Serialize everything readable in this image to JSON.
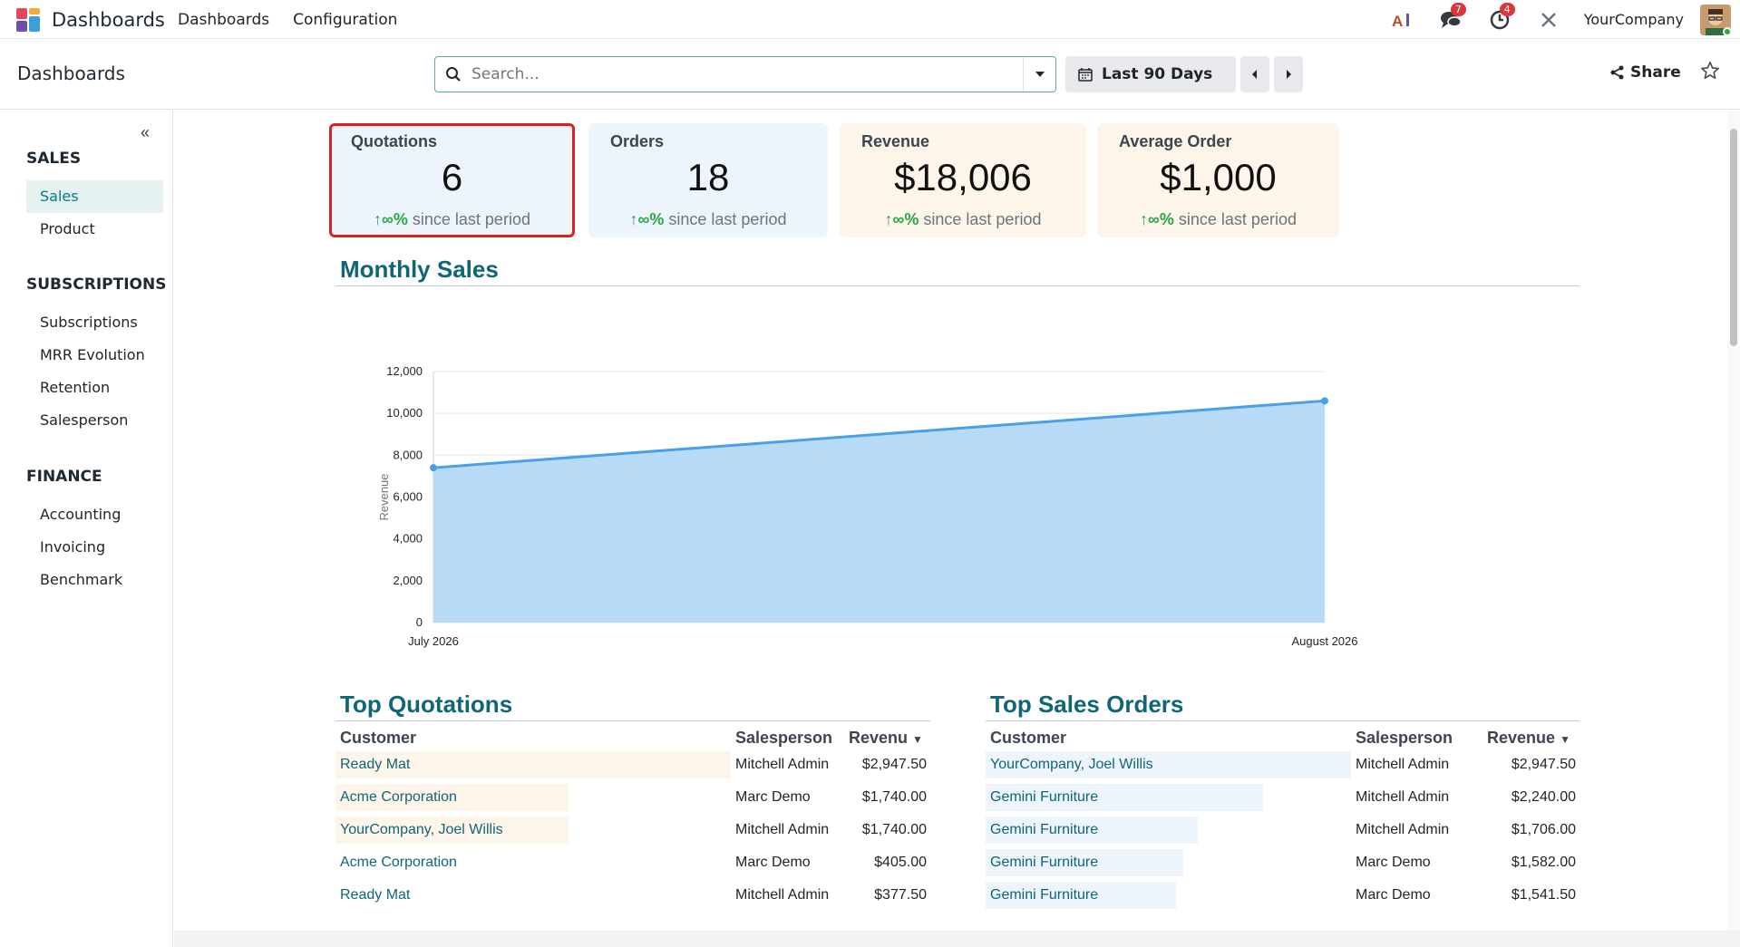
{
  "navbar": {
    "app_name": "Dashboards",
    "menu": [
      "Dashboards",
      "Configuration"
    ],
    "messages_count": "7",
    "activities_count": "4",
    "company": "YourCompany"
  },
  "control": {
    "breadcrumb": "Dashboards",
    "search_placeholder": "Search...",
    "date_filter": "Last 90 Days",
    "share_label": "Share"
  },
  "sidebar": {
    "collapse_glyph": "«",
    "sections": [
      {
        "title": "SALES",
        "items": [
          "Sales",
          "Product"
        ]
      },
      {
        "title": "SUBSCRIPTIONS",
        "items": [
          "Subscriptions",
          "MRR Evolution",
          "Retention",
          "Salesperson"
        ]
      },
      {
        "title": "FINANCE",
        "items": [
          "Accounting",
          "Invoicing",
          "Benchmark"
        ]
      }
    ],
    "active_item": "Sales"
  },
  "kpis": [
    {
      "label": "Quotations",
      "value": "6",
      "trend": "∞%",
      "trend_suffix": "since last period",
      "color": "#edf4fc"
    },
    {
      "label": "Orders",
      "value": "18",
      "trend": "∞%",
      "trend_suffix": "since last period",
      "color": "#edf4fc"
    },
    {
      "label": "Revenue",
      "value": "$18,006",
      "trend": "∞%",
      "trend_suffix": "since last period",
      "color": "#fdf4ea"
    },
    {
      "label": "Average Order",
      "value": "$1,000",
      "trend": "∞%",
      "trend_suffix": "since last period",
      "color": "#fdf4ea"
    }
  ],
  "monthly_sales": {
    "title": "Monthly Sales"
  },
  "chart_data": {
    "type": "area",
    "x": [
      "July 2026",
      "August 2026"
    ],
    "series": [
      {
        "values": [
          7400,
          10600
        ]
      }
    ],
    "ylabel": "Revenue",
    "xlabel": "",
    "ylim": [
      0,
      12000
    ],
    "yticks": [
      "0",
      "2,000",
      "4,000",
      "6,000",
      "8,000",
      "10,000",
      "12,000"
    ],
    "grid": true,
    "fill_color": "#b7dbf7",
    "line_color": "#4aa0e6"
  },
  "top_quotations": {
    "title": "Top Quotations",
    "headers": [
      "Customer",
      "Salesperson",
      "Revenu"
    ],
    "rows": [
      {
        "customer": "Ready Mat",
        "salesperson": "Mitchell Admin",
        "revenue": "$2,947.50",
        "ratio": 1.0
      },
      {
        "customer": "Acme Corporation",
        "salesperson": "Marc Demo",
        "revenue": "$1,740.00",
        "ratio": 0.59
      },
      {
        "customer": "YourCompany, Joel Willis",
        "salesperson": "Mitchell Admin",
        "revenue": "$1,740.00",
        "ratio": 0.59
      },
      {
        "customer": "Acme Corporation",
        "salesperson": "Marc Demo",
        "revenue": "$405.00",
        "ratio": 0
      },
      {
        "customer": "Ready Mat",
        "salesperson": "Mitchell Admin",
        "revenue": "$377.50",
        "ratio": 0
      }
    ]
  },
  "top_sales_orders": {
    "title": "Top Sales Orders",
    "headers": [
      "Customer",
      "Salesperson",
      "Revenue"
    ],
    "rows": [
      {
        "customer": "YourCompany, Joel Willis",
        "salesperson": "Mitchell Admin",
        "revenue": "$2,947.50",
        "ratio": 1.0
      },
      {
        "customer": "Gemini Furniture",
        "salesperson": "Mitchell Admin",
        "revenue": "$2,240.00",
        "ratio": 0.76
      },
      {
        "customer": "Gemini Furniture",
        "salesperson": "Mitchell Admin",
        "revenue": "$1,706.00",
        "ratio": 0.58
      },
      {
        "customer": "Gemini Furniture",
        "salesperson": "Marc Demo",
        "revenue": "$1,582.00",
        "ratio": 0.54
      },
      {
        "customer": "Gemini Furniture",
        "salesperson": "Marc Demo",
        "revenue": "$1,541.50",
        "ratio": 0.52
      }
    ]
  },
  "colors": {
    "accent": "#017e84",
    "title": "#0f6677",
    "quotation_bar": "#fdf4ea",
    "order_bar": "#edf4fc"
  }
}
